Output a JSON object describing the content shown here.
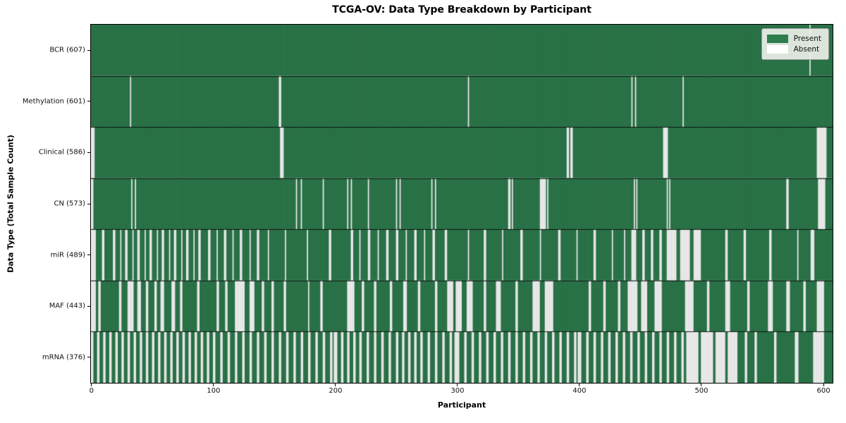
{
  "chart_data": {
    "type": "heatmap",
    "title": "TCGA-OV: Data Type Breakdown by Participant",
    "xlabel": "Participant",
    "ylabel": "Data Type (Total Sample Count)",
    "n_participants": 608,
    "x_ticks": [
      0,
      100,
      200,
      300,
      400,
      500,
      600
    ],
    "grid": false,
    "legend": {
      "position": "upper-right",
      "entries": [
        {
          "label": "Present",
          "color": "#2e7d4e"
        },
        {
          "label": "Absent",
          "color": "#ffffff"
        }
      ]
    },
    "colors": {
      "present": "#2e7d4e",
      "absent": "#ffffff",
      "bar_edge": "rgba(0,0,0,0.30)",
      "row_divider": "rgba(0,0,0,0.85)",
      "frame": "#000000"
    },
    "rows": [
      {
        "label": "BCR (607)",
        "name": "BCR",
        "present_count": 607,
        "absent_ranges": [
          [
            589,
            589
          ]
        ]
      },
      {
        "label": "Methylation (601)",
        "name": "Methylation",
        "present_count": 601,
        "absent_ranges": [
          [
            32,
            32
          ],
          [
            154,
            155
          ],
          [
            309,
            309
          ],
          [
            443,
            443
          ],
          [
            446,
            446
          ],
          [
            485,
            485
          ]
        ]
      },
      {
        "label": "Clinical (586)",
        "name": "Clinical",
        "present_count": 586,
        "absent_ranges": [
          [
            0,
            2
          ],
          [
            155,
            157
          ],
          [
            390,
            391
          ],
          [
            393,
            394
          ],
          [
            469,
            472
          ],
          [
            595,
            602
          ]
        ]
      },
      {
        "label": "CN (573)",
        "name": "CN",
        "present_count": 573,
        "absent_ranges": [
          [
            0,
            1
          ],
          [
            33,
            33
          ],
          [
            36,
            36
          ],
          [
            168,
            168
          ],
          [
            172,
            172
          ],
          [
            190,
            190
          ],
          [
            210,
            210
          ],
          [
            213,
            213
          ],
          [
            227,
            227
          ],
          [
            250,
            250
          ],
          [
            253,
            253
          ],
          [
            279,
            279
          ],
          [
            282,
            282
          ],
          [
            342,
            343
          ],
          [
            345,
            345
          ],
          [
            368,
            372
          ],
          [
            374,
            374
          ],
          [
            445,
            445
          ],
          [
            447,
            447
          ],
          [
            472,
            472
          ],
          [
            474,
            474
          ],
          [
            570,
            571
          ],
          [
            596,
            601
          ]
        ]
      },
      {
        "label": "miR (489)",
        "name": "miR",
        "present_count": 489,
        "absent_ranges": [
          [
            0,
            3
          ],
          [
            9,
            10
          ],
          [
            18,
            19
          ],
          [
            24,
            24
          ],
          [
            28,
            29
          ],
          [
            34,
            34
          ],
          [
            38,
            39
          ],
          [
            44,
            44
          ],
          [
            48,
            49
          ],
          [
            54,
            54
          ],
          [
            58,
            59
          ],
          [
            64,
            64
          ],
          [
            68,
            69
          ],
          [
            74,
            74
          ],
          [
            78,
            79
          ],
          [
            84,
            84
          ],
          [
            88,
            89
          ],
          [
            96,
            97
          ],
          [
            103,
            103
          ],
          [
            109,
            110
          ],
          [
            116,
            116
          ],
          [
            122,
            123
          ],
          [
            130,
            130
          ],
          [
            136,
            137
          ],
          [
            145,
            145
          ],
          [
            159,
            159
          ],
          [
            177,
            177
          ],
          [
            195,
            196
          ],
          [
            213,
            214
          ],
          [
            220,
            220
          ],
          [
            227,
            228
          ],
          [
            235,
            235
          ],
          [
            242,
            243
          ],
          [
            250,
            251
          ],
          [
            258,
            258
          ],
          [
            265,
            266
          ],
          [
            273,
            273
          ],
          [
            280,
            281
          ],
          [
            290,
            291
          ],
          [
            309,
            309
          ],
          [
            322,
            323
          ],
          [
            337,
            337
          ],
          [
            352,
            353
          ],
          [
            368,
            368
          ],
          [
            383,
            384
          ],
          [
            398,
            398
          ],
          [
            412,
            413
          ],
          [
            427,
            427
          ],
          [
            437,
            437
          ],
          [
            443,
            446
          ],
          [
            452,
            453
          ],
          [
            459,
            460
          ],
          [
            466,
            467
          ],
          [
            472,
            479
          ],
          [
            483,
            490
          ],
          [
            494,
            499
          ],
          [
            520,
            521
          ],
          [
            535,
            536
          ],
          [
            556,
            557
          ],
          [
            579,
            579
          ],
          [
            590,
            592
          ]
        ]
      },
      {
        "label": "MAF (443)",
        "name": "MAF",
        "present_count": 443,
        "absent_ranges": [
          [
            0,
            3
          ],
          [
            6,
            7
          ],
          [
            23,
            24
          ],
          [
            30,
            34
          ],
          [
            38,
            40
          ],
          [
            45,
            46
          ],
          [
            52,
            53
          ],
          [
            57,
            59
          ],
          [
            66,
            68
          ],
          [
            73,
            74
          ],
          [
            87,
            88
          ],
          [
            103,
            104
          ],
          [
            110,
            111
          ],
          [
            118,
            125
          ],
          [
            130,
            133
          ],
          [
            140,
            141
          ],
          [
            148,
            149
          ],
          [
            158,
            159
          ],
          [
            178,
            178
          ],
          [
            188,
            189
          ],
          [
            210,
            215
          ],
          [
            222,
            223
          ],
          [
            232,
            233
          ],
          [
            245,
            246
          ],
          [
            256,
            258
          ],
          [
            268,
            269
          ],
          [
            282,
            283
          ],
          [
            292,
            296
          ],
          [
            299,
            303
          ],
          [
            308,
            312
          ],
          [
            322,
            323
          ],
          [
            332,
            335
          ],
          [
            348,
            349
          ],
          [
            362,
            367
          ],
          [
            372,
            378
          ],
          [
            408,
            409
          ],
          [
            420,
            421
          ],
          [
            432,
            433
          ],
          [
            440,
            447
          ],
          [
            451,
            455
          ],
          [
            462,
            467
          ],
          [
            487,
            493
          ],
          [
            505,
            506
          ],
          [
            520,
            523
          ],
          [
            538,
            539
          ],
          [
            555,
            558
          ],
          [
            570,
            572
          ],
          [
            584,
            585
          ],
          [
            595,
            600
          ]
        ]
      },
      {
        "label": "mRNA (376)",
        "name": "mRNA",
        "present_count": 376,
        "absent_ranges": [
          [
            0,
            1
          ],
          [
            5,
            6
          ],
          [
            10,
            11
          ],
          [
            15,
            16
          ],
          [
            20,
            21
          ],
          [
            25,
            26
          ],
          [
            30,
            31
          ],
          [
            35,
            36
          ],
          [
            40,
            41
          ],
          [
            45,
            46
          ],
          [
            50,
            51
          ],
          [
            55,
            56
          ],
          [
            60,
            61
          ],
          [
            65,
            66
          ],
          [
            70,
            71
          ],
          [
            75,
            76
          ],
          [
            80,
            81
          ],
          [
            85,
            86
          ],
          [
            90,
            91
          ],
          [
            95,
            96
          ],
          [
            100,
            101
          ],
          [
            106,
            107
          ],
          [
            112,
            113
          ],
          [
            118,
            119
          ],
          [
            124,
            125
          ],
          [
            130,
            131
          ],
          [
            136,
            137
          ],
          [
            142,
            143
          ],
          [
            148,
            149
          ],
          [
            154,
            155
          ],
          [
            160,
            161
          ],
          [
            166,
            167
          ],
          [
            172,
            173
          ],
          [
            178,
            179
          ],
          [
            184,
            185
          ],
          [
            190,
            191
          ],
          [
            196,
            197
          ],
          [
            199,
            201
          ],
          [
            205,
            206
          ],
          [
            210,
            211
          ],
          [
            215,
            216
          ],
          [
            220,
            221
          ],
          [
            226,
            227
          ],
          [
            232,
            233
          ],
          [
            238,
            239
          ],
          [
            244,
            245
          ],
          [
            250,
            251
          ],
          [
            255,
            256
          ],
          [
            260,
            261
          ],
          [
            265,
            266
          ],
          [
            270,
            271
          ],
          [
            276,
            277
          ],
          [
            282,
            283
          ],
          [
            288,
            289
          ],
          [
            294,
            295
          ],
          [
            298,
            301
          ],
          [
            306,
            307
          ],
          [
            312,
            313
          ],
          [
            318,
            319
          ],
          [
            324,
            325
          ],
          [
            330,
            331
          ],
          [
            336,
            337
          ],
          [
            342,
            343
          ],
          [
            348,
            349
          ],
          [
            354,
            355
          ],
          [
            360,
            361
          ],
          [
            366,
            367
          ],
          [
            372,
            373
          ],
          [
            378,
            379
          ],
          [
            384,
            385
          ],
          [
            390,
            391
          ],
          [
            396,
            397
          ],
          [
            399,
            401
          ],
          [
            406,
            407
          ],
          [
            412,
            413
          ],
          [
            418,
            419
          ],
          [
            424,
            425
          ],
          [
            430,
            431
          ],
          [
            436,
            437
          ],
          [
            442,
            443
          ],
          [
            448,
            449
          ],
          [
            454,
            455
          ],
          [
            460,
            461
          ],
          [
            466,
            467
          ],
          [
            472,
            473
          ],
          [
            478,
            479
          ],
          [
            484,
            485
          ],
          [
            488,
            497
          ],
          [
            500,
            509
          ],
          [
            512,
            519
          ],
          [
            522,
            529
          ],
          [
            536,
            537
          ],
          [
            544,
            545
          ],
          [
            560,
            561
          ],
          [
            577,
            579
          ],
          [
            592,
            600
          ]
        ]
      }
    ]
  }
}
